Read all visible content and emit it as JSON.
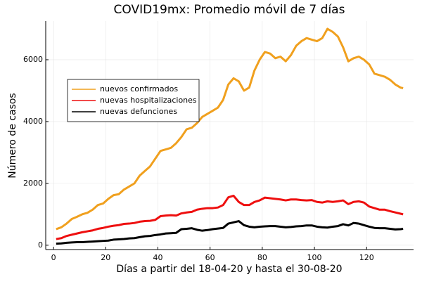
{
  "chart_data": {
    "type": "line",
    "title": "COVID19mx: Promedio móvil de 7 días",
    "x_label": "Días a partir del 18-04-20 y hasta el 30-08-20",
    "y_label": "Número de casos",
    "x": [
      1,
      3,
      5,
      7,
      9,
      11,
      13,
      15,
      17,
      19,
      21,
      23,
      25,
      27,
      29,
      31,
      33,
      35,
      37,
      39,
      41,
      43,
      45,
      47,
      49,
      51,
      53,
      55,
      57,
      59,
      61,
      63,
      65,
      67,
      69,
      71,
      73,
      75,
      77,
      79,
      81,
      83,
      85,
      87,
      89,
      91,
      93,
      95,
      97,
      99,
      101,
      103,
      105,
      107,
      109,
      111,
      113,
      115,
      117,
      119,
      121,
      123,
      125,
      127,
      129,
      131,
      133,
      134
    ],
    "series": [
      {
        "name": "nuevos confirmados",
        "color": "#f0a01e",
        "values": [
          520,
          580,
          700,
          850,
          920,
          1000,
          1050,
          1150,
          1300,
          1350,
          1500,
          1620,
          1650,
          1800,
          1900,
          2000,
          2250,
          2400,
          2550,
          2800,
          3050,
          3100,
          3150,
          3300,
          3500,
          3750,
          3800,
          3950,
          4150,
          4250,
          4350,
          4450,
          4700,
          5200,
          5400,
          5300,
          5000,
          5100,
          5650,
          6000,
          6250,
          6200,
          6050,
          6100,
          5950,
          6150,
          6450,
          6600,
          6700,
          6650,
          6600,
          6700,
          7000,
          6900,
          6750,
          6400,
          5950,
          6050,
          6100,
          6000,
          5850,
          5550,
          5500,
          5450,
          5350,
          5200,
          5100,
          5080
        ]
      },
      {
        "name": "nuevas hospitalizaciones",
        "color": "#ee0f0f",
        "values": [
          200,
          230,
          300,
          340,
          380,
          420,
          450,
          480,
          530,
          560,
          600,
          630,
          650,
          690,
          700,
          720,
          760,
          780,
          790,
          820,
          940,
          960,
          970,
          960,
          1030,
          1060,
          1080,
          1150,
          1180,
          1200,
          1200,
          1220,
          1300,
          1550,
          1600,
          1400,
          1300,
          1300,
          1400,
          1450,
          1540,
          1520,
          1500,
          1480,
          1450,
          1480,
          1480,
          1460,
          1450,
          1460,
          1400,
          1380,
          1420,
          1400,
          1420,
          1450,
          1330,
          1400,
          1420,
          1380,
          1250,
          1200,
          1150,
          1150,
          1100,
          1060,
          1020,
          1000
        ]
      },
      {
        "name": "nuevas defunciones",
        "color": "#000000",
        "values": [
          50,
          60,
          80,
          90,
          100,
          100,
          110,
          120,
          130,
          140,
          150,
          180,
          190,
          200,
          220,
          230,
          260,
          290,
          300,
          330,
          350,
          380,
          390,
          400,
          520,
          530,
          550,
          500,
          470,
          490,
          520,
          540,
          560,
          700,
          740,
          780,
          650,
          600,
          580,
          600,
          610,
          620,
          620,
          600,
          580,
          590,
          610,
          620,
          640,
          640,
          600,
          580,
          570,
          600,
          620,
          680,
          640,
          720,
          700,
          650,
          600,
          560,
          550,
          550,
          530,
          510,
          520,
          530
        ]
      }
    ],
    "xlim": [
      -3,
      138
    ],
    "xticks": [
      0,
      20,
      40,
      60,
      80,
      100,
      120
    ],
    "ylim": [
      -140,
      7250
    ],
    "yticks": [
      0,
      2000,
      4000,
      6000
    ],
    "grid": true,
    "legend_position": "upper left"
  }
}
